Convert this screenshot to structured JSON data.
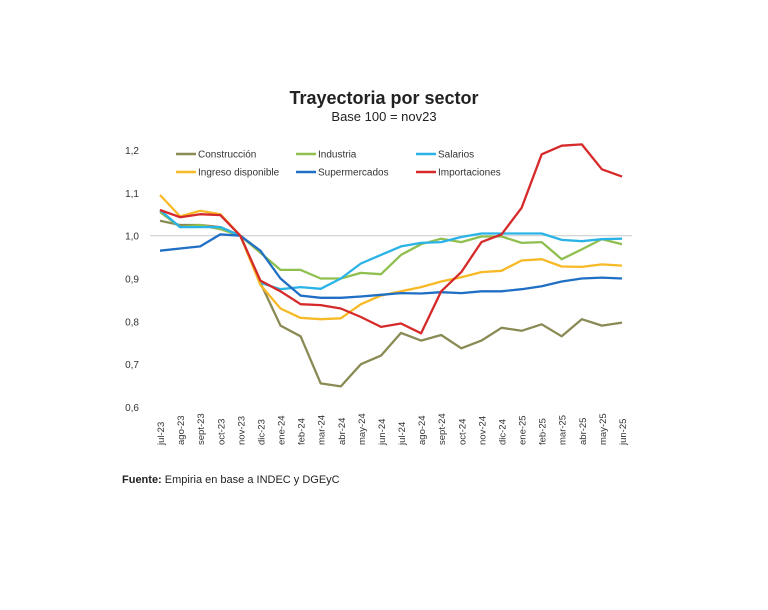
{
  "chart_data": {
    "type": "line",
    "title": "Trayectoria por sector",
    "subtitle": "Base 100 = nov23",
    "xlabel": "",
    "ylabel": "",
    "ylim": [
      0.6,
      1.2
    ],
    "yticks": [
      "0,6",
      "0,7",
      "0,8",
      "0,9",
      "1,0",
      "1,1",
      "1,2"
    ],
    "reference_line": 1.0,
    "legend_position": "top",
    "categories": [
      "jul-23",
      "ago-23",
      "sept-23",
      "oct-23",
      "nov-23",
      "dic-23",
      "ene-24",
      "feb-24",
      "mar-24",
      "abr-24",
      "may-24",
      "jun-24",
      "jul-24",
      "ago-24",
      "sept-24",
      "oct-24",
      "nov-24",
      "dic-24",
      "ene-25",
      "feb-25",
      "mar-25",
      "abr-25",
      "may-25",
      "jun-25"
    ],
    "series": [
      {
        "name": "Construcción",
        "color": "#8a8a55",
        "values": [
          1.035,
          1.025,
          1.025,
          1.02,
          1.0,
          0.89,
          0.79,
          0.765,
          0.655,
          0.648,
          0.7,
          0.72,
          0.773,
          0.755,
          0.768,
          0.737,
          0.755,
          0.785,
          0.778,
          0.793,
          0.765,
          0.805,
          0.79,
          0.797
        ]
      },
      {
        "name": "Industria",
        "color": "#8fbf4f",
        "values": [
          1.055,
          1.02,
          1.025,
          1.015,
          1.0,
          0.96,
          0.92,
          0.92,
          0.9,
          0.9,
          0.913,
          0.91,
          0.955,
          0.98,
          0.993,
          0.985,
          0.998,
          0.998,
          0.983,
          0.985,
          0.945,
          0.968,
          0.992,
          0.98
        ]
      },
      {
        "name": "Salarios",
        "color": "#2ab3e6",
        "values": [
          1.06,
          1.02,
          1.02,
          1.02,
          1.0,
          0.89,
          0.875,
          0.88,
          0.876,
          0.9,
          0.935,
          0.955,
          0.975,
          0.983,
          0.985,
          0.997,
          1.005,
          1.005,
          1.005,
          1.005,
          0.99,
          0.987,
          0.992,
          0.993
        ]
      },
      {
        "name": "Ingreso disponible",
        "color": "#f7b926",
        "values": [
          1.095,
          1.045,
          1.058,
          1.05,
          1.0,
          0.885,
          0.83,
          0.808,
          0.805,
          0.807,
          0.84,
          0.86,
          0.87,
          0.88,
          0.893,
          0.903,
          0.915,
          0.918,
          0.942,
          0.945,
          0.928,
          0.927,
          0.933,
          0.93
        ]
      },
      {
        "name": "Supermercados",
        "color": "#1f6fc4",
        "values": [
          0.965,
          0.97,
          0.975,
          1.003,
          1.0,
          0.965,
          0.9,
          0.86,
          0.855,
          0.855,
          0.858,
          0.862,
          0.866,
          0.865,
          0.868,
          0.866,
          0.87,
          0.87,
          0.875,
          0.882,
          0.893,
          0.9,
          0.902,
          0.9
        ]
      },
      {
        "name": "Importaciones",
        "color": "#d62a2a",
        "values": [
          1.06,
          1.043,
          1.05,
          1.048,
          1.0,
          0.895,
          0.87,
          0.84,
          0.838,
          0.83,
          0.81,
          0.787,
          0.795,
          0.772,
          0.87,
          0.915,
          0.985,
          1.003,
          1.065,
          1.19,
          1.21,
          1.213,
          1.155,
          1.138
        ]
      }
    ]
  },
  "source": {
    "label": "Fuente:",
    "text": " Empiria en base a INDEC y DGEyC"
  }
}
